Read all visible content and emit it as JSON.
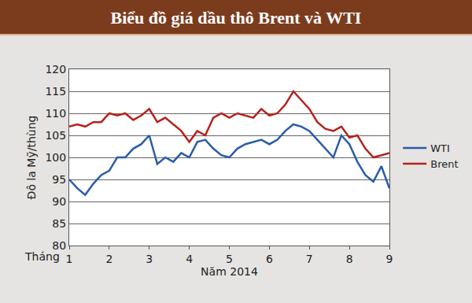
{
  "chart_data": {
    "type": "line",
    "title": "Biểu đồ giá dầu thô Brent và WTI",
    "x_label": "Năm 2014",
    "y_label": "Đô la Mỹ/thùng",
    "annotations": [
      "Tháng"
    ],
    "x": [
      1.0,
      1.2,
      1.4,
      1.6,
      1.8,
      2.0,
      2.2,
      2.4,
      2.6,
      2.8,
      3.0,
      3.2,
      3.4,
      3.6,
      3.8,
      4.0,
      4.2,
      4.4,
      4.6,
      4.8,
      5.0,
      5.2,
      5.4,
      5.6,
      5.8,
      6.0,
      6.2,
      6.4,
      6.6,
      6.8,
      7.0,
      7.2,
      7.4,
      7.6,
      7.8,
      8.0,
      8.2,
      8.4,
      8.6,
      8.8,
      9.0
    ],
    "series": [
      {
        "name": "WTI",
        "color": "#2a5caa",
        "values": [
          95,
          93,
          91.5,
          94,
          96,
          97,
          100,
          100,
          102,
          103,
          105,
          98.5,
          100,
          99,
          101,
          100,
          103.5,
          104,
          102,
          100.5,
          100,
          102,
          103,
          103.5,
          104,
          103,
          104,
          106,
          107.5,
          107,
          106,
          104,
          102,
          100,
          105,
          103,
          99,
          96,
          94.5,
          98,
          93
        ]
      },
      {
        "name": "Brent",
        "color": "#b5221b",
        "values": [
          107,
          107.5,
          107,
          108,
          108,
          110,
          109.5,
          110,
          108.5,
          109.5,
          111,
          108,
          109,
          107.5,
          106,
          103.5,
          106,
          105,
          109,
          110,
          109,
          110,
          109.5,
          109,
          111,
          109.5,
          110,
          112,
          115,
          113,
          111,
          108,
          106.5,
          106,
          107,
          104.5,
          105,
          102,
          100,
          100.5,
          101
        ]
      }
    ],
    "xlim": [
      1,
      9
    ],
    "xticks": [
      1,
      2,
      3,
      4,
      5,
      6,
      7,
      8,
      9
    ],
    "ylim": [
      80,
      120
    ],
    "yticks": [
      80,
      85,
      90,
      95,
      100,
      105,
      110,
      115,
      120
    ],
    "grid": true,
    "legend": "right"
  }
}
